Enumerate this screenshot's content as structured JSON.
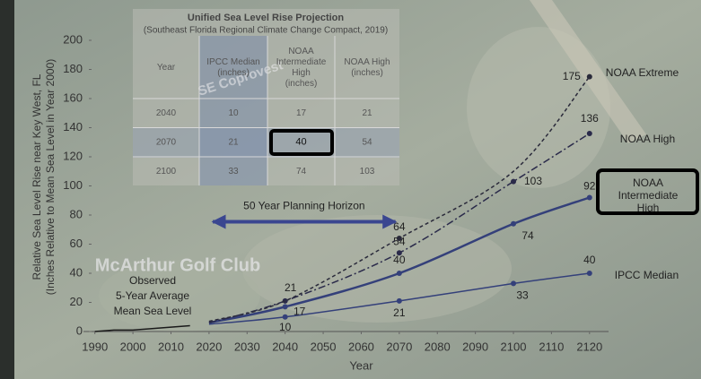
{
  "chart_data": {
    "type": "line",
    "xlabel": "Year",
    "ylabel": [
      "Relative Sea Level Rise near Key West, FL",
      "(Inches Relative to Mean Sea Level in Year 2000)"
    ],
    "xlim": [
      1987,
      2125
    ],
    "xticks": [
      1990,
      2000,
      2010,
      2020,
      2030,
      2040,
      2050,
      2060,
      2070,
      2080,
      2090,
      2100,
      2110,
      2120
    ],
    "ylim": [
      0,
      200
    ],
    "yticks": [
      0,
      20,
      40,
      60,
      80,
      100,
      120,
      140,
      160,
      180,
      200
    ],
    "observed": {
      "name": [
        "Observed",
        "5-Year Average",
        "Mean Sea Level"
      ],
      "color": "#1a1a1a",
      "x": [
        1990,
        1995,
        2000,
        2005,
        2010,
        2015
      ],
      "values": [
        0,
        1,
        1,
        2,
        3,
        4
      ]
    },
    "series": [
      {
        "name": "IPCC Median",
        "color": "#34407a",
        "dash": "none",
        "x": [
          2020,
          2040,
          2070,
          2100,
          2120
        ],
        "values": [
          5,
          10,
          21,
          33,
          40
        ],
        "value_labels": [
          null,
          "10",
          "21",
          "33",
          "40"
        ]
      },
      {
        "name": "NOAA Intermediate High",
        "color": "#34407a",
        "dash": "none",
        "x": [
          2020,
          2040,
          2070,
          2100,
          2120
        ],
        "values": [
          6,
          17,
          40,
          74,
          92
        ],
        "value_labels": [
          null,
          "17",
          "40",
          "74",
          "92"
        ]
      },
      {
        "name": "NOAA High",
        "color": "#2a2a4a",
        "dash": "8 3 2 3",
        "x": [
          2020,
          2040,
          2070,
          2100,
          2120
        ],
        "values": [
          6,
          21,
          54,
          103,
          136
        ],
        "value_labels": [
          null,
          "21",
          "54",
          "103",
          "136"
        ]
      },
      {
        "name": "NOAA Extreme",
        "color": "#2a2a3a",
        "dash": "4 3",
        "x": [
          2020,
          2040,
          2070,
          2100,
          2120
        ],
        "values": [
          7,
          21,
          64,
          110,
          175
        ],
        "value_labels": [
          null,
          null,
          "64",
          null,
          "175"
        ]
      }
    ],
    "planning_horizon": {
      "text": "50 Year Planning Horizon",
      "x": [
        2021,
        2069
      ]
    }
  },
  "table": {
    "title": "Unified Sea Level Rise Projection",
    "subtitle": "(Southeast Florida Regional Climate Change Compact, 2019)",
    "header": [
      "Year",
      "IPCC Median (inches)",
      "NOAA Intermediate High (inches)",
      "NOAA High (inches)"
    ],
    "rows": [
      [
        2040,
        10,
        17,
        21
      ],
      [
        2070,
        21,
        40,
        54
      ],
      [
        2100,
        33,
        74,
        103
      ]
    ]
  },
  "map_labels": [
    "McArthur Golf Club",
    "SE Coprovest"
  ]
}
